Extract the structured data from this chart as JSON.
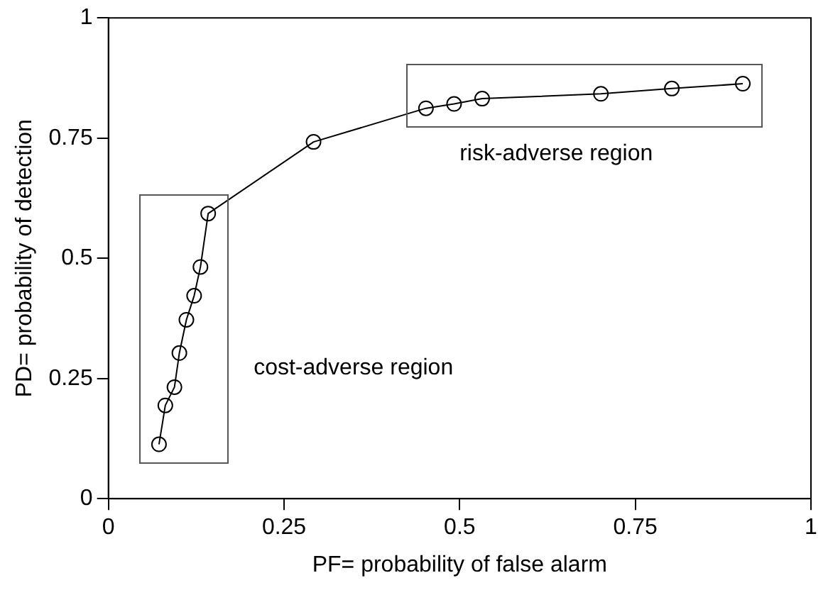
{
  "chart_data": {
    "type": "line",
    "xlabel": "PF= probability of false alarm",
    "ylabel": "PD= probability of detection",
    "x": [
      0.072,
      0.081,
      0.094,
      0.101,
      0.111,
      0.122,
      0.131,
      0.142,
      0.292,
      0.452,
      0.492,
      0.532,
      0.701,
      0.802,
      0.903
    ],
    "series": [
      {
        "color": "#000000",
        "values": [
          0.113,
          0.194,
          0.232,
          0.303,
          0.372,
          0.422,
          0.482,
          0.593,
          0.742,
          0.812,
          0.821,
          0.832,
          0.842,
          0.853,
          0.863
        ]
      }
    ],
    "xlim": [
      0,
      1
    ],
    "xticks": [
      0,
      0.25,
      0.5,
      0.75,
      1
    ],
    "ylim": [
      0,
      1
    ],
    "yticks": [
      0,
      0.25,
      0.5,
      0.75,
      1
    ],
    "grid": false,
    "legend": false,
    "marker": "circle",
    "line_style": "solid",
    "annotations": [
      "cost-adverse region",
      "risk-adverse region"
    ]
  }
}
